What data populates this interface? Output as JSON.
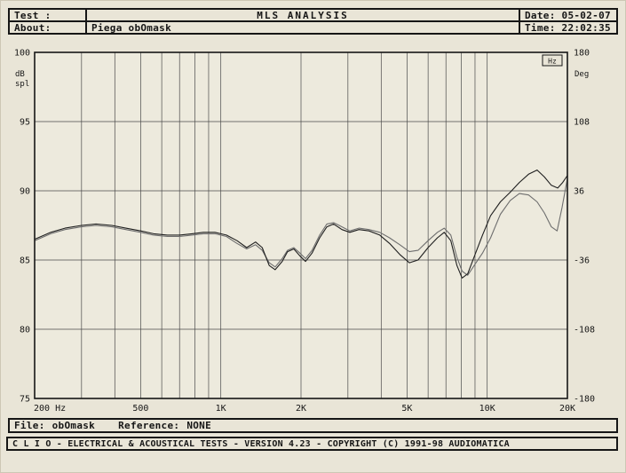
{
  "header": {
    "test_label": "Test :",
    "title": "MLS ANALYSIS",
    "date": "Date: 05-02-07",
    "about_label": "About:",
    "about_value": "Piega obOmask",
    "time": "Time: 22:02:35"
  },
  "chart": {
    "y_left_units": [
      "dB",
      "spl"
    ],
    "y_right_unit": "Deg",
    "x_unit_badge": "Hz",
    "y_left_ticks": [
      "100",
      "95",
      "90",
      "85",
      "80",
      "75"
    ],
    "y_right_ticks": [
      "180",
      "108",
      "36",
      "-36",
      "-108",
      "-180"
    ],
    "x_ticks": [
      "200 Hz",
      "500",
      "1K",
      "2K",
      "5K",
      "10K",
      "20K"
    ]
  },
  "chart_data": {
    "type": "line",
    "title": "MLS ANALYSIS frequency response",
    "x_scale": "log",
    "x_range_hz": [
      200,
      20000
    ],
    "ylim_db": [
      75,
      100
    ],
    "y2lim_deg": [
      -180,
      180
    ],
    "x_tick_freqs": [
      200,
      500,
      1000,
      2000,
      5000,
      10000,
      20000
    ],
    "grid_freqs": [
      300,
      400,
      500,
      600,
      700,
      800,
      900,
      1000,
      2000,
      3000,
      4000,
      5000,
      6000,
      7000,
      8000,
      9000,
      10000
    ],
    "grid_db": [
      95,
      90,
      85,
      80
    ],
    "series": [
      {
        "name": "response-curve-main",
        "color": "#1f1f1f",
        "points": [
          [
            200,
            86.5
          ],
          [
            230,
            87.0
          ],
          [
            260,
            87.3
          ],
          [
            300,
            87.5
          ],
          [
            340,
            87.6
          ],
          [
            390,
            87.5
          ],
          [
            440,
            87.3
          ],
          [
            500,
            87.1
          ],
          [
            560,
            86.9
          ],
          [
            630,
            86.8
          ],
          [
            700,
            86.8
          ],
          [
            780,
            86.9
          ],
          [
            860,
            87.0
          ],
          [
            950,
            87.0
          ],
          [
            1050,
            86.8
          ],
          [
            1150,
            86.4
          ],
          [
            1250,
            85.9
          ],
          [
            1350,
            86.3
          ],
          [
            1430,
            85.9
          ],
          [
            1520,
            84.6
          ],
          [
            1600,
            84.3
          ],
          [
            1700,
            84.9
          ],
          [
            1780,
            85.6
          ],
          [
            1880,
            85.8
          ],
          [
            1980,
            85.3
          ],
          [
            2080,
            84.9
          ],
          [
            2200,
            85.5
          ],
          [
            2350,
            86.6
          ],
          [
            2500,
            87.4
          ],
          [
            2650,
            87.6
          ],
          [
            2850,
            87.2
          ],
          [
            3050,
            87.0
          ],
          [
            3300,
            87.2
          ],
          [
            3600,
            87.1
          ],
          [
            3950,
            86.8
          ],
          [
            4300,
            86.2
          ],
          [
            4700,
            85.4
          ],
          [
            5100,
            84.8
          ],
          [
            5500,
            85.0
          ],
          [
            6000,
            85.9
          ],
          [
            6500,
            86.6
          ],
          [
            6900,
            87.0
          ],
          [
            7300,
            86.4
          ],
          [
            7700,
            84.6
          ],
          [
            8050,
            83.7
          ],
          [
            8450,
            84.0
          ],
          [
            9000,
            85.4
          ],
          [
            9600,
            86.8
          ],
          [
            10300,
            88.2
          ],
          [
            11200,
            89.2
          ],
          [
            12200,
            89.9
          ],
          [
            13200,
            90.6
          ],
          [
            14300,
            91.2
          ],
          [
            15400,
            91.5
          ],
          [
            16400,
            91.0
          ],
          [
            17400,
            90.4
          ],
          [
            18400,
            90.2
          ],
          [
            19200,
            90.6
          ],
          [
            20000,
            91.1
          ]
        ]
      },
      {
        "name": "response-curve-overlay",
        "color": "#6e6e6e",
        "points": [
          [
            200,
            86.4
          ],
          [
            230,
            86.9
          ],
          [
            260,
            87.2
          ],
          [
            300,
            87.4
          ],
          [
            340,
            87.5
          ],
          [
            390,
            87.4
          ],
          [
            440,
            87.2
          ],
          [
            500,
            87.0
          ],
          [
            560,
            86.8
          ],
          [
            630,
            86.7
          ],
          [
            700,
            86.7
          ],
          [
            780,
            86.8
          ],
          [
            860,
            86.9
          ],
          [
            950,
            86.9
          ],
          [
            1050,
            86.7
          ],
          [
            1150,
            86.2
          ],
          [
            1250,
            85.8
          ],
          [
            1350,
            86.1
          ],
          [
            1430,
            85.7
          ],
          [
            1520,
            84.8
          ],
          [
            1600,
            84.5
          ],
          [
            1700,
            85.1
          ],
          [
            1780,
            85.7
          ],
          [
            1880,
            85.9
          ],
          [
            1980,
            85.5
          ],
          [
            2080,
            85.1
          ],
          [
            2200,
            85.7
          ],
          [
            2350,
            86.8
          ],
          [
            2500,
            87.6
          ],
          [
            2650,
            87.7
          ],
          [
            2850,
            87.4
          ],
          [
            3050,
            87.1
          ],
          [
            3300,
            87.3
          ],
          [
            3600,
            87.2
          ],
          [
            3950,
            87.0
          ],
          [
            4300,
            86.6
          ],
          [
            4700,
            86.1
          ],
          [
            5100,
            85.6
          ],
          [
            5500,
            85.7
          ],
          [
            6000,
            86.4
          ],
          [
            6500,
            87.0
          ],
          [
            6900,
            87.3
          ],
          [
            7300,
            86.8
          ],
          [
            7700,
            85.2
          ],
          [
            8050,
            84.2
          ],
          [
            8450,
            83.9
          ],
          [
            9000,
            84.7
          ],
          [
            9600,
            85.5
          ],
          [
            10300,
            86.6
          ],
          [
            11200,
            88.3
          ],
          [
            12200,
            89.3
          ],
          [
            13200,
            89.8
          ],
          [
            14300,
            89.7
          ],
          [
            15400,
            89.2
          ],
          [
            16400,
            88.4
          ],
          [
            17400,
            87.4
          ],
          [
            18300,
            87.1
          ],
          [
            19100,
            88.8
          ],
          [
            20000,
            90.9
          ]
        ]
      }
    ]
  },
  "status": {
    "file_label": "File:",
    "file_value": "obOmask",
    "reference_label": "Reference:",
    "reference_value": "NONE"
  },
  "footer": {
    "credits": "C L I O  -  ELECTRICAL & ACOUSTICAL TESTS  -  VERSION 4.23  -  COPYRIGHT (C) 1991-98 AUDIOMATICA"
  },
  "colors": {
    "background": "#e9e5d7",
    "plot_bg": "#edeadd",
    "grid": "#4a4a4a",
    "frame": "#161616"
  }
}
